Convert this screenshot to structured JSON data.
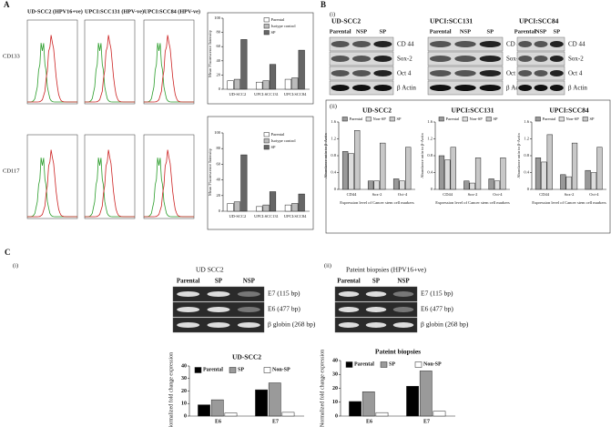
{
  "figure": {
    "panel_a": {
      "label": "A",
      "cell_lines": [
        "UD-SCC2 (HPV16+ve)",
        "UPCI:SCC131 (HPV-ve)",
        "UPCI:SCC84 (HPV-ve)"
      ],
      "markers": [
        "CD133",
        "CD117"
      ]
    },
    "panel_b": {
      "label": "B",
      "sub_i": "(i)",
      "sub_ii": "(ii)",
      "blots": [
        {
          "title": "UD-SCC2",
          "lanes": [
            "Parental",
            "NSP",
            "SP"
          ],
          "bands": [
            "CD 44",
            "Sox-2",
            "Oct 4",
            "β Actin"
          ]
        },
        {
          "title": "UPCI:SCC131",
          "lanes": [
            "Parental",
            "NSP",
            "SP"
          ],
          "bands": [
            "CD 44",
            "Sox-2",
            "Oct 4",
            "β Actin"
          ]
        },
        {
          "title": "UPCI:SCC84",
          "lanes": [
            "Parental",
            "NSP",
            "SP"
          ],
          "bands": [
            "CD 44",
            "Sox-2",
            "Oct 4",
            "β Actin"
          ]
        }
      ]
    },
    "panel_c": {
      "label": "C",
      "gels": [
        {
          "sub": "(i)",
          "title": "UD SCC2",
          "lanes": [
            "Parental",
            "SP",
            "NSP"
          ],
          "bands": [
            "E7 (115 bp)",
            "E6 (477 bp)",
            "β globin (268 bp)"
          ]
        },
        {
          "sub": "(ii)",
          "title": "Pateint biopsies (HPV16+ve)",
          "lanes": [
            "Parental",
            "SP",
            "NSP"
          ],
          "bands": [
            "E7 (115 bp)",
            "E6 (477 bp)",
            "β globin (268 bp)"
          ]
        }
      ]
    }
  },
  "chart_data": [
    {
      "type": "bar",
      "y_label": "Mean Fluorescence Intensity",
      "categories": [
        "UD-SCC2",
        "UPCI:SCC131",
        "UPCI:SCC84"
      ],
      "ylim": [
        0,
        100
      ],
      "yticks": [
        0,
        20,
        40,
        60,
        80,
        100
      ],
      "series": [
        {
          "name": "Parental",
          "color": "#ffffff",
          "values": [
            12,
            10,
            14
          ]
        },
        {
          "name": "Isotype control",
          "color": "#bbbbbb",
          "values": [
            14,
            12,
            16
          ]
        },
        {
          "name": "SP",
          "color": "#666666",
          "values": [
            70,
            35,
            55
          ]
        }
      ]
    },
    {
      "type": "bar",
      "y_label": "Mean Fluorescence Intensity",
      "categories": [
        "UD-SCC2",
        "UPCI:SCC131",
        "UPCI:SCC84"
      ],
      "ylim": [
        0,
        100
      ],
      "yticks": [
        0,
        20,
        40,
        60,
        80,
        100
      ],
      "series": [
        {
          "name": "Parental",
          "color": "#ffffff",
          "values": [
            10,
            6,
            8
          ]
        },
        {
          "name": "Isotype control",
          "color": "#bbbbbb",
          "values": [
            12,
            8,
            10
          ]
        },
        {
          "name": "SP",
          "color": "#666666",
          "values": [
            72,
            25,
            22
          ]
        }
      ]
    },
    {
      "type": "bar",
      "title": "UD-SCC2",
      "y_label": "Abundance ratio to β-Actin",
      "x_label": "Expression level of Cancer stem cell markers",
      "categories": [
        "CD44",
        "Sox-2",
        "Oct-4"
      ],
      "ylim": [
        0,
        1.6
      ],
      "yticks": [
        0,
        0.4,
        0.8,
        1.2,
        1.6
      ],
      "series": [
        {
          "name": "Parental",
          "color": "#999999",
          "values": [
            0.9,
            0.2,
            0.25
          ]
        },
        {
          "name": "Non-SP",
          "color": "#dddddd",
          "values": [
            0.85,
            0.2,
            0.2
          ]
        },
        {
          "name": "SP",
          "color": "#c8c8c8",
          "values": [
            1.4,
            1.1,
            1.0
          ]
        }
      ]
    },
    {
      "type": "bar",
      "title": "UPCI:SCC131",
      "y_label": "Abundance ratio to β-Actin",
      "x_label": "Expression level of Cancer stem cell markers",
      "categories": [
        "CD44",
        "Sox-2",
        "Oct-4"
      ],
      "ylim": [
        0,
        1.6
      ],
      "yticks": [
        0,
        0.4,
        0.8,
        1.2,
        1.6
      ],
      "series": [
        {
          "name": "Parental",
          "color": "#999999",
          "values": [
            0.8,
            0.2,
            0.25
          ]
        },
        {
          "name": "Non-SP",
          "color": "#dddddd",
          "values": [
            0.7,
            0.15,
            0.2
          ]
        },
        {
          "name": "SP",
          "color": "#c8c8c8",
          "values": [
            1.0,
            0.75,
            0.75
          ]
        }
      ]
    },
    {
      "type": "bar",
      "title": "UPCI:SCC84",
      "y_label": "Abundance ratio to β-Actin",
      "x_label": "Expression level of Cancer stem cell markers",
      "categories": [
        "CD44",
        "Sox-2",
        "Oct-4"
      ],
      "ylim": [
        0,
        1.6
      ],
      "yticks": [
        0,
        0.4,
        0.8,
        1.2,
        1.6
      ],
      "series": [
        {
          "name": "Parental",
          "color": "#999999",
          "values": [
            0.75,
            0.35,
            0.45
          ]
        },
        {
          "name": "Non-SP",
          "color": "#dddddd",
          "values": [
            0.65,
            0.3,
            0.4
          ]
        },
        {
          "name": "SP",
          "color": "#c8c8c8",
          "values": [
            1.3,
            1.1,
            1.0
          ]
        }
      ]
    },
    {
      "type": "bar",
      "title": "UD-SCC2",
      "y_label": "Normalized fold change expression",
      "categories": [
        "E6",
        "E7"
      ],
      "ylim": [
        0,
        40
      ],
      "yticks": [
        0,
        10,
        20,
        30,
        40
      ],
      "series": [
        {
          "name": "Parental",
          "color": "#000000",
          "values": [
            9,
            21
          ]
        },
        {
          "name": "SP",
          "color": "#9a9a9a",
          "values": [
            13,
            26.5
          ]
        },
        {
          "name": "Non-SP",
          "color": "#ffffff",
          "values": [
            2.5,
            3
          ]
        }
      ]
    },
    {
      "type": "bar",
      "title": "Pateint biopsies",
      "y_label": "Normalized fold change expression",
      "categories": [
        "E6",
        "E7"
      ],
      "ylim": [
        0,
        40
      ],
      "yticks": [
        0,
        10,
        20,
        30,
        40
      ],
      "series": [
        {
          "name": "Parental",
          "color": "#000000",
          "values": [
            10.5,
            21.5
          ]
        },
        {
          "name": "SP",
          "color": "#9a9a9a",
          "values": [
            17.5,
            32.5
          ]
        },
        {
          "name": "Non-SP",
          "color": "#ffffff",
          "values": [
            2.5,
            3.5
          ]
        }
      ]
    }
  ]
}
